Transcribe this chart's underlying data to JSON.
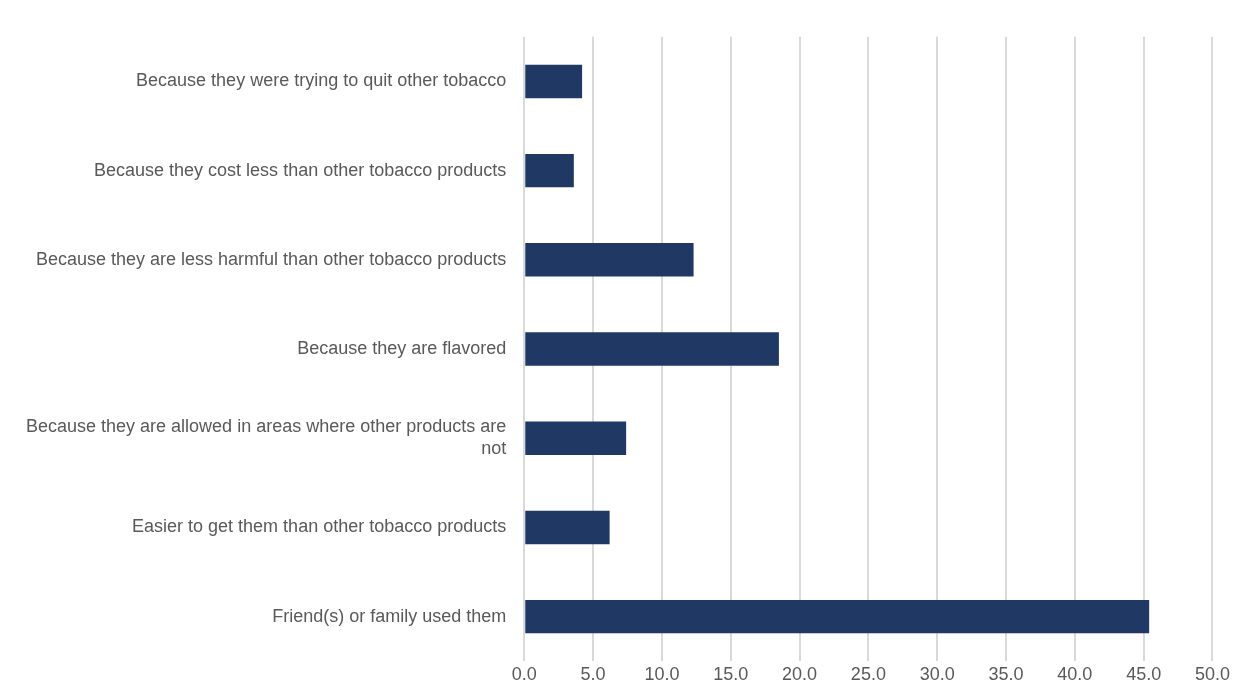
{
  "chart_data": {
    "type": "bar",
    "orientation": "horizontal",
    "categories": [
      "Because they were trying to quit other tobacco",
      "Because they cost less than other tobacco products",
      "Because they are less harmful than other tobacco products",
      "Because they are flavored",
      "Because they are allowed in areas where other products are not",
      "Easier to get them than other tobacco products",
      "Friend(s) or family used them"
    ],
    "values": [
      4.2,
      3.6,
      12.3,
      18.5,
      7.4,
      6.2,
      45.4
    ],
    "color": "#1f3864",
    "xlim": [
      0,
      50
    ],
    "xticks": [
      {
        "value": 0,
        "label": "0.0"
      },
      {
        "value": 5,
        "label": "5.0"
      },
      {
        "value": 10,
        "label": "10.0"
      },
      {
        "value": 15,
        "label": "15.0"
      },
      {
        "value": 20,
        "label": "20.0"
      },
      {
        "value": 25,
        "label": "25.0"
      },
      {
        "value": 30,
        "label": "30.0"
      },
      {
        "value": 35,
        "label": "35.0"
      },
      {
        "value": 40,
        "label": "40.0"
      },
      {
        "value": 45,
        "label": "45.0"
      },
      {
        "value": 50,
        "label": "50.0"
      }
    ],
    "grid": "x",
    "legend": false
  }
}
